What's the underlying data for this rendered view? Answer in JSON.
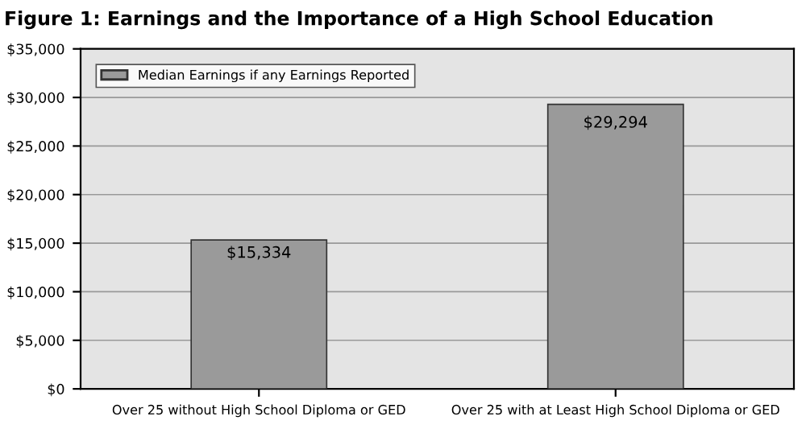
{
  "chart_data": {
    "type": "bar",
    "title": "Figure 1: Earnings and the Importance of a High School Education",
    "categories": [
      "Over 25 without High School Diploma or GED",
      "Over 25 with at Least High School Diploma or GED"
    ],
    "series": [
      {
        "name": "Median Earnings if any Earnings Reported",
        "color": "#9a9a9a",
        "values": [
          15334,
          29294
        ],
        "value_labels": [
          "$15,334",
          "$29,294"
        ]
      }
    ],
    "ylim": [
      0,
      35000
    ],
    "yticks": [
      {
        "value": 0,
        "label": "$0"
      },
      {
        "value": 5000,
        "label": "$5,000"
      },
      {
        "value": 10000,
        "label": "$10,000"
      },
      {
        "value": 15000,
        "label": "$15,000"
      },
      {
        "value": 20000,
        "label": "$20,000"
      },
      {
        "value": 25000,
        "label": "$25,000"
      },
      {
        "value": 30000,
        "label": "$30,000"
      },
      {
        "value": 35000,
        "label": "$35,000"
      }
    ],
    "grid": "y",
    "legend": "top left"
  }
}
